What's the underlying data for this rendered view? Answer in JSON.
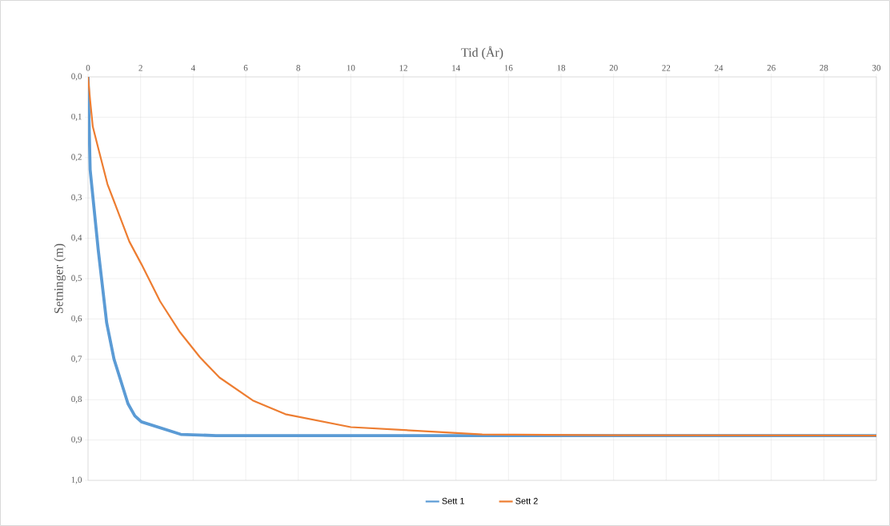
{
  "chart_data": {
    "type": "line",
    "xlabel": "Tid (År)",
    "ylabel": "Setninger (m)",
    "xlim": [
      0,
      30
    ],
    "xticks": [
      0,
      2,
      4,
      6,
      8,
      10,
      12,
      14,
      16,
      18,
      20,
      22,
      24,
      26,
      28,
      30
    ],
    "ylim": [
      1.0,
      0
    ],
    "yticks": [
      {
        "value": 0,
        "label": "0,0"
      },
      {
        "value": 0.1,
        "label": "0,1"
      },
      {
        "value": 0.2,
        "label": "0,2"
      },
      {
        "value": 0.3,
        "label": "0,3"
      },
      {
        "value": 0.4,
        "label": "0,4"
      },
      {
        "value": 0.5,
        "label": "0,5"
      },
      {
        "value": 0.6,
        "label": "0,6"
      },
      {
        "value": 0.7,
        "label": "0,7"
      },
      {
        "value": 0.8,
        "label": "0,8"
      },
      {
        "value": 0.9,
        "label": "0,9"
      },
      {
        "value": 1.0,
        "label": "1,0"
      }
    ],
    "grid": true,
    "legend": "bottom",
    "marker": "none",
    "line_style": "solid",
    "series": [
      {
        "name": "Sett 1",
        "color": "#5b9bd5",
        "x": [
          0,
          0.08,
          0.39,
          0.71,
          0.99,
          1.52,
          1.78,
          2.03,
          3.53,
          4.87,
          10,
          15,
          20,
          30
        ],
        "values": [
          0,
          0.23,
          0.43,
          0.61,
          0.7,
          0.81,
          0.84,
          0.855,
          0.886,
          0.889,
          0.889,
          0.889,
          0.889,
          0.889
        ]
      },
      {
        "name": "Sett 2",
        "color": "#ed7d31",
        "x": [
          0,
          0.08,
          0.18,
          0.39,
          0.74,
          1.01,
          1.57,
          2.03,
          2.74,
          3.5,
          4.26,
          5.0,
          6.27,
          7.51,
          10,
          15,
          20,
          30
        ],
        "values": [
          0,
          0.058,
          0.123,
          0.177,
          0.266,
          0.312,
          0.408,
          0.464,
          0.556,
          0.633,
          0.695,
          0.745,
          0.802,
          0.836,
          0.868,
          0.886,
          0.888,
          0.889
        ]
      }
    ]
  }
}
